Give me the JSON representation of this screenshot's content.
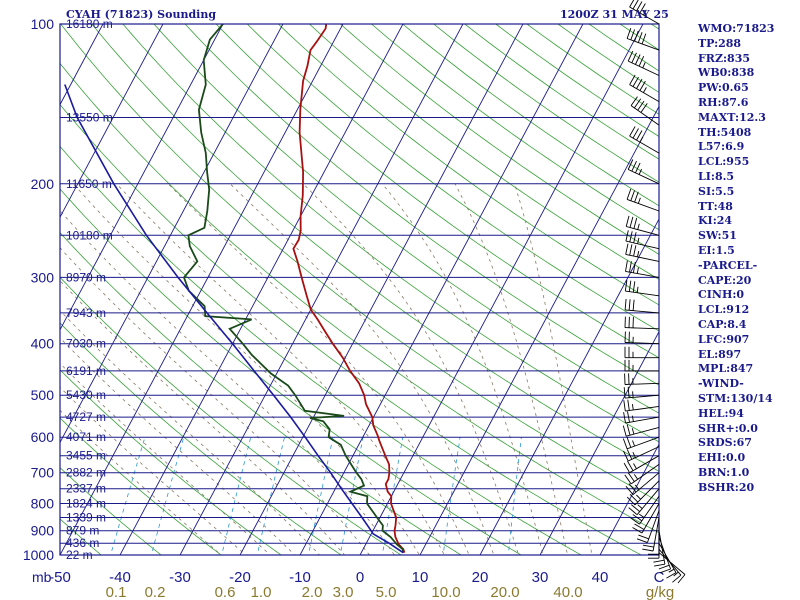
{
  "header": {
    "station": "CYAH (71823) Sounding",
    "valid": "1200Z 31 MAY 25"
  },
  "indices": [
    "WMO:71823",
    "TP:288",
    "FRZ:835",
    "WB0:838",
    "PW:0.65",
    "RH:87.6",
    "MAXT:12.3",
    "TH:5408",
    "L57:6.9",
    "LCL:955",
    "LI:8.5",
    "SI:5.5",
    "TT:48",
    "KI:24",
    "SW:51",
    "EI:1.5",
    "-PARCEL-",
    "CAPE:20",
    "CINH:0",
    "LCL:912",
    "CAP:8.4",
    "LFC:907",
    "EL:897",
    "MPL:847",
    "-WIND-",
    "STM:130/14",
    "HEL:94",
    "SHR+:0.0",
    "SRDS:67",
    "EHI:0.0",
    "BRN:1.0",
    "BSHR:20"
  ],
  "chart_data": {
    "type": "line",
    "skew_t": true,
    "y_scale": "log",
    "ylim": [
      1000,
      100
    ],
    "xlim": [
      -50,
      50
    ],
    "pressure_ticks": [
      "100",
      "200",
      "300",
      "400",
      "500",
      "600",
      "700",
      "800",
      "900",
      "1000"
    ],
    "pressure_unit": "mb",
    "temperature_ticks": [
      "-50",
      "-40",
      "-30",
      "-20",
      "-10",
      "0",
      "10",
      "20",
      "30",
      "40",
      "C"
    ],
    "mixing_ratio_ticks": [
      "0.1",
      "0.2",
      "0.6",
      "1.0",
      "2.0",
      "3.0",
      "5.0",
      "10.0",
      "20.0",
      "40.0",
      "g/kg"
    ],
    "height_labels": [
      {
        "p": 100,
        "label": "16180 m"
      },
      {
        "p": 150,
        "label": "13550 m"
      },
      {
        "p": 200,
        "label": "11650 m"
      },
      {
        "p": 250,
        "label": "10180 m"
      },
      {
        "p": 300,
        "label": "8970 m"
      },
      {
        "p": 350,
        "label": "7943 m"
      },
      {
        "p": 400,
        "label": "7030 m"
      },
      {
        "p": 450,
        "label": "6191 m"
      },
      {
        "p": 500,
        "label": "5430 m"
      },
      {
        "p": 550,
        "label": "4727 m"
      },
      {
        "p": 600,
        "label": "4071 m"
      },
      {
        "p": 650,
        "label": "3455 m"
      },
      {
        "p": 700,
        "label": "2882 m"
      },
      {
        "p": 750,
        "label": "2337 m"
      },
      {
        "p": 800,
        "label": "1824 m"
      },
      {
        "p": 850,
        "label": "1339 m"
      },
      {
        "p": 900,
        "label": "879 m"
      },
      {
        "p": 950,
        "label": "436 m"
      },
      {
        "p": 1000,
        "label": "22 m"
      }
    ],
    "series": [
      {
        "name": "",
        "role": "temperature",
        "color": "#a81010",
        "points": [
          [
            990,
            7.2
          ],
          [
            975,
            6.7
          ],
          [
            955,
            5.5
          ],
          [
            925,
            4.3
          ],
          [
            900,
            3.6
          ],
          [
            880,
            3.3
          ],
          [
            850,
            2.7
          ],
          [
            800,
            0.6
          ],
          [
            775,
            0.0
          ],
          [
            760,
            -1.0
          ],
          [
            735,
            -2.0
          ],
          [
            720,
            -2.0
          ],
          [
            700,
            -2.4
          ],
          [
            675,
            -3.2
          ],
          [
            650,
            -4.6
          ],
          [
            610,
            -6.9
          ],
          [
            595,
            -7.7
          ],
          [
            570,
            -9.3
          ],
          [
            550,
            -10.2
          ],
          [
            520,
            -12.4
          ],
          [
            500,
            -13.5
          ],
          [
            475,
            -15.4
          ],
          [
            450,
            -18.0
          ],
          [
            425,
            -20.4
          ],
          [
            400,
            -23.3
          ],
          [
            380,
            -25.6
          ],
          [
            360,
            -28.0
          ],
          [
            345,
            -30.0
          ],
          [
            325,
            -31.9
          ],
          [
            300,
            -34.4
          ],
          [
            280,
            -36.5
          ],
          [
            265,
            -38.3
          ],
          [
            255,
            -38.2
          ],
          [
            245,
            -38.7
          ],
          [
            230,
            -40.0
          ],
          [
            210,
            -41.5
          ],
          [
            190,
            -43.5
          ],
          [
            160,
            -47.6
          ],
          [
            145,
            -49.5
          ],
          [
            128,
            -51.6
          ],
          [
            120,
            -52.2
          ],
          [
            112,
            -53.1
          ],
          [
            108,
            -52.8
          ],
          [
            102,
            -52.5
          ],
          [
            100,
            -52.8
          ]
        ]
      },
      {
        "name": "",
        "role": "dewpoint",
        "color": "#1a4a1a",
        "points": [
          [
            990,
            7.0
          ],
          [
            975,
            6.6
          ],
          [
            955,
            5.2
          ],
          [
            925,
            3.5
          ],
          [
            900,
            1.6
          ],
          [
            880,
            1.2
          ],
          [
            850,
            -0.5
          ],
          [
            800,
            -3.4
          ],
          [
            775,
            -4.0
          ],
          [
            760,
            -7.2
          ],
          [
            740,
            -5.5
          ],
          [
            720,
            -6.5
          ],
          [
            700,
            -7.9
          ],
          [
            650,
            -11.2
          ],
          [
            620,
            -13.0
          ],
          [
            600,
            -15.7
          ],
          [
            580,
            -16.2
          ],
          [
            560,
            -18.0
          ],
          [
            552,
            -20.5
          ],
          [
            547,
            -15.0
          ],
          [
            535,
            -22.0
          ],
          [
            500,
            -25.0
          ],
          [
            480,
            -27.0
          ],
          [
            455,
            -31.0
          ],
          [
            420,
            -35.8
          ],
          [
            400,
            -38.3
          ],
          [
            375,
            -41.8
          ],
          [
            360,
            -39.0
          ],
          [
            355,
            -47.0
          ],
          [
            340,
            -48.0
          ],
          [
            318,
            -52.0
          ],
          [
            300,
            -54.0
          ],
          [
            280,
            -53.2
          ],
          [
            262,
            -55.8
          ],
          [
            250,
            -57.0
          ],
          [
            242,
            -55.0
          ],
          [
            225,
            -56.0
          ],
          [
            205,
            -57.6
          ],
          [
            190,
            -59.5
          ],
          [
            175,
            -61.4
          ],
          [
            160,
            -64.0
          ],
          [
            145,
            -66.4
          ],
          [
            130,
            -67.5
          ],
          [
            117,
            -70.0
          ],
          [
            107,
            -70.8
          ],
          [
            100,
            -70.0
          ]
        ]
      },
      {
        "name": "",
        "role": "parcel",
        "color": "#1a1aa0",
        "points": [
          [
            990,
            7.0
          ],
          [
            950,
            3.8
          ],
          [
            912,
            0.3
          ],
          [
            900,
            -0.3
          ],
          [
            850,
            -3.0
          ],
          [
            800,
            -5.9
          ],
          [
            750,
            -9.0
          ],
          [
            700,
            -12.2
          ],
          [
            650,
            -15.8
          ],
          [
            600,
            -19.6
          ],
          [
            550,
            -23.8
          ],
          [
            500,
            -28.6
          ],
          [
            450,
            -34.0
          ],
          [
            400,
            -40.0
          ],
          [
            350,
            -47.0
          ],
          [
            300,
            -55.0
          ],
          [
            250,
            -64.0
          ],
          [
            200,
            -74.0
          ],
          [
            150,
            -86.0
          ],
          [
            130,
            -91.0
          ]
        ]
      }
    ],
    "wind_barbs": [
      {
        "p": 990,
        "dir": 130,
        "spd": 10
      },
      {
        "p": 975,
        "dir": 140,
        "spd": 15
      },
      {
        "p": 950,
        "dir": 150,
        "spd": 15
      },
      {
        "p": 925,
        "dir": 160,
        "spd": 20
      },
      {
        "p": 900,
        "dir": 170,
        "spd": 20
      },
      {
        "p": 875,
        "dir": 180,
        "spd": 20
      },
      {
        "p": 850,
        "dir": 190,
        "spd": 20
      },
      {
        "p": 825,
        "dir": 200,
        "spd": 20
      },
      {
        "p": 800,
        "dir": 210,
        "spd": 20
      },
      {
        "p": 775,
        "dir": 215,
        "spd": 25
      },
      {
        "p": 750,
        "dir": 220,
        "spd": 25
      },
      {
        "p": 725,
        "dir": 225,
        "spd": 25
      },
      {
        "p": 700,
        "dir": 230,
        "spd": 25
      },
      {
        "p": 675,
        "dir": 235,
        "spd": 25
      },
      {
        "p": 650,
        "dir": 240,
        "spd": 25
      },
      {
        "p": 625,
        "dir": 245,
        "spd": 25
      },
      {
        "p": 600,
        "dir": 250,
        "spd": 25
      },
      {
        "p": 575,
        "dir": 255,
        "spd": 25
      },
      {
        "p": 550,
        "dir": 260,
        "spd": 25
      },
      {
        "p": 525,
        "dir": 262,
        "spd": 25
      },
      {
        "p": 500,
        "dir": 265,
        "spd": 25
      },
      {
        "p": 475,
        "dir": 268,
        "spd": 25
      },
      {
        "p": 450,
        "dir": 270,
        "spd": 25
      },
      {
        "p": 425,
        "dir": 270,
        "spd": 25
      },
      {
        "p": 400,
        "dir": 272,
        "spd": 25
      },
      {
        "p": 375,
        "dir": 272,
        "spd": 30
      },
      {
        "p": 350,
        "dir": 275,
        "spd": 30
      },
      {
        "p": 325,
        "dir": 278,
        "spd": 35
      },
      {
        "p": 300,
        "dir": 280,
        "spd": 35
      },
      {
        "p": 280,
        "dir": 282,
        "spd": 35
      },
      {
        "p": 265,
        "dir": 283,
        "spd": 35
      },
      {
        "p": 250,
        "dir": 285,
        "spd": 35
      },
      {
        "p": 225,
        "dir": 290,
        "spd": 35
      },
      {
        "p": 200,
        "dir": 295,
        "spd": 35
      },
      {
        "p": 175,
        "dir": 300,
        "spd": 35
      },
      {
        "p": 155,
        "dir": 305,
        "spd": 40
      },
      {
        "p": 140,
        "dir": 300,
        "spd": 45
      },
      {
        "p": 125,
        "dir": 295,
        "spd": 45
      },
      {
        "p": 112,
        "dir": 290,
        "spd": 50
      },
      {
        "p": 100,
        "dir": 300,
        "spd": 45
      }
    ]
  },
  "colors": {
    "frame": "#1a1a8c",
    "isobar": "#1a1a8c",
    "isotherm": "#1a1a8c",
    "dry_adiabat": "#3aa33a",
    "moist_adiabat": "#8a7a66",
    "mixing_ratio": "#2a9ad0",
    "temperature_label": "#1a1a8c",
    "mixing_ratio_label": "#8a7a30",
    "wind_barb": "#000000"
  }
}
